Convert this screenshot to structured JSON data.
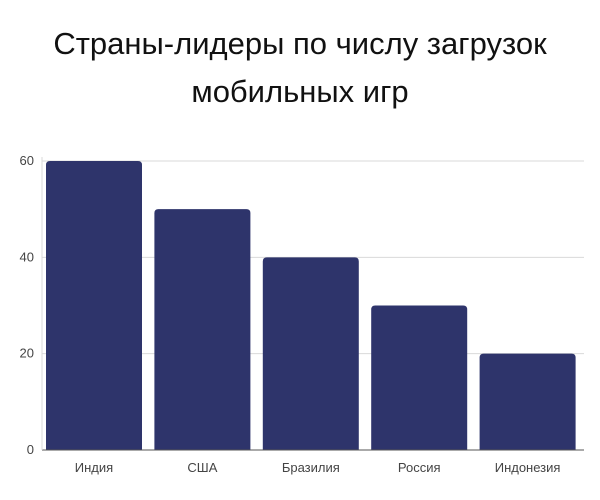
{
  "chart_data": {
    "type": "bar",
    "title_lines": [
      "Страны-лидеры по числу загрузок",
      "мобильных игр"
    ],
    "title": "Страны-лидеры по числу загрузок мобильных игр",
    "categories": [
      "Индия",
      "США",
      "Бразилия",
      "Россия",
      "Индонезия"
    ],
    "values": [
      60,
      50,
      40,
      30,
      20
    ],
    "ylim": [
      0,
      60
    ],
    "yticks": [
      0,
      20,
      40,
      60
    ],
    "xlabel": "",
    "ylabel": "",
    "grid": true,
    "legend": "none",
    "colors": {
      "bar": "#2e346b",
      "grid": "#d9d9d9",
      "axis": "#555555"
    }
  }
}
